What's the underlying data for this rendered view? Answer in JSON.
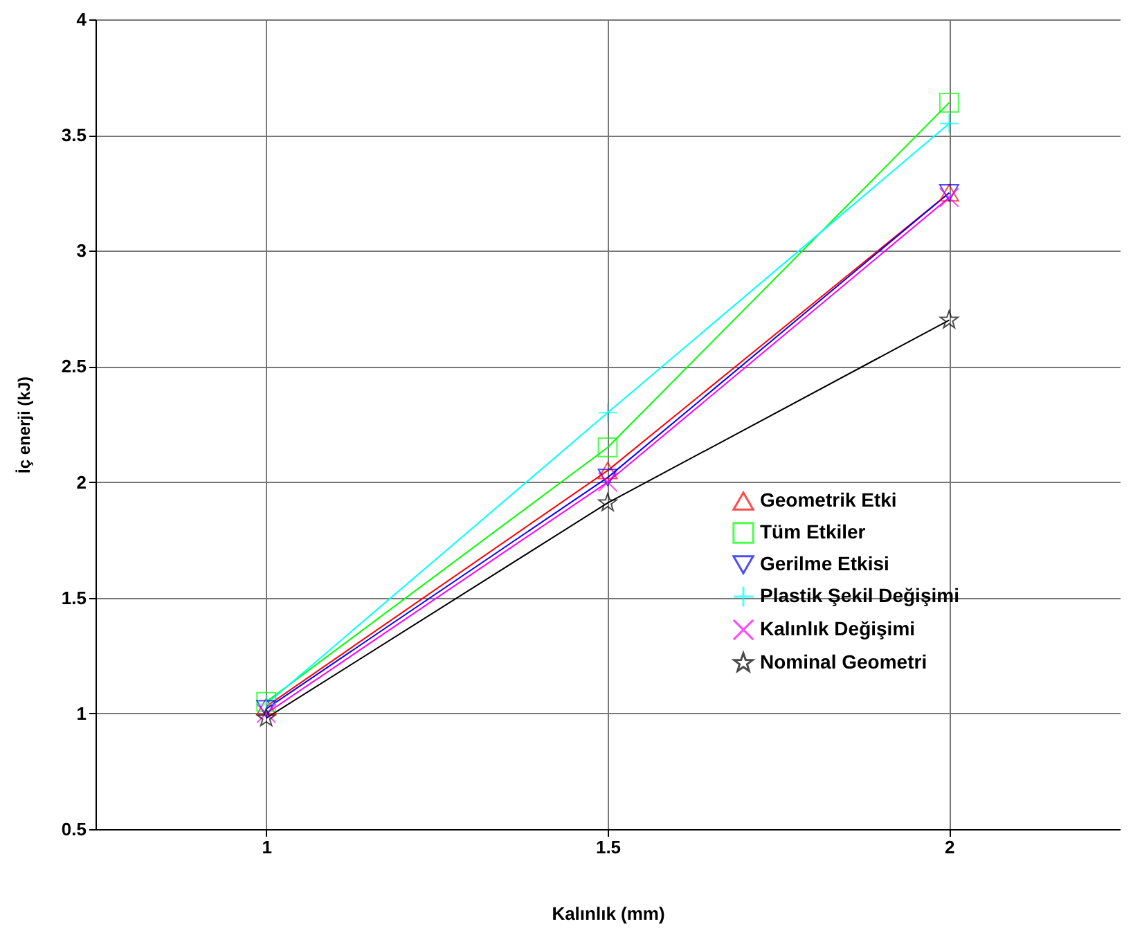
{
  "chart_data": {
    "type": "line",
    "xlabel": "Kalınlık (mm)",
    "ylabel": "İç enerji (kJ)",
    "x": [
      1,
      1.5,
      2
    ],
    "xlim": [
      0.75,
      2.25
    ],
    "xticks": [
      1,
      1.5,
      2
    ],
    "ylim": [
      0.5,
      4
    ],
    "yticks": [
      0.5,
      1,
      1.5,
      2,
      2.5,
      3,
      3.5,
      4
    ],
    "grid": true,
    "legend": "right",
    "series": [
      {
        "name": "Geometrik Etki",
        "color": "#ff0000",
        "marker": "triangle",
        "values": [
          1.03,
          2.05,
          3.25
        ]
      },
      {
        "name": "Tüm Etkiler",
        "color": "#00ff00",
        "marker": "square",
        "values": [
          1.05,
          2.15,
          3.64
        ]
      },
      {
        "name": "Gerilme Etkisi",
        "color": "#0000ff",
        "marker": "triangle-down",
        "values": [
          1.02,
          2.02,
          3.25
        ]
      },
      {
        "name": "Plastik Şekil Değişimi",
        "color": "#00ffff",
        "marker": "cross",
        "values": [
          1.04,
          2.3,
          3.55
        ]
      },
      {
        "name": "Kalınlık Değişimi",
        "color": "#ff00ff",
        "marker": "x",
        "values": [
          1.0,
          2.0,
          3.23
        ]
      },
      {
        "name": "Nominal Geometri",
        "color": "#000000",
        "marker": "star",
        "values": [
          0.98,
          1.91,
          2.7
        ]
      }
    ]
  }
}
